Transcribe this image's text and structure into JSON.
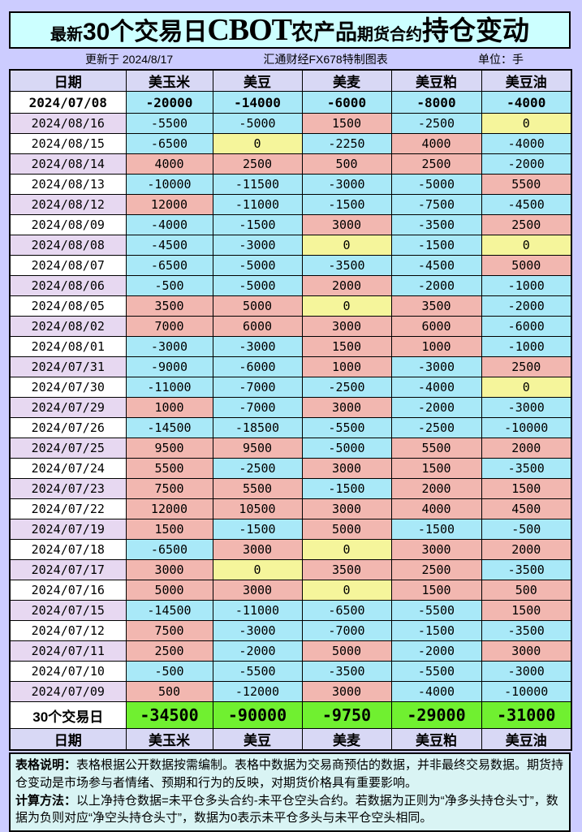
{
  "title": {
    "p1": "最新",
    "p2": "30个交易日",
    "p3": "CBOT",
    "p4": "农产品",
    "p5": "期货合约",
    "p6": "持仓变动"
  },
  "meta": {
    "updated": "更新于 2024/8/17",
    "source": "汇通财经FX678特制图表",
    "unit": "单位：手"
  },
  "chart_data": {
    "type": "table",
    "title": "最新30个交易日CBOT农产品期货合约持仓变动",
    "unit": "手",
    "columns": [
      "日期",
      "美玉米",
      "美豆",
      "美麦",
      "美豆粕",
      "美豆油"
    ],
    "rows": [
      [
        "2024/07/08",
        -20000,
        -14000,
        -6000,
        -8000,
        -4000
      ],
      [
        "2024/08/16",
        -5500,
        -5000,
        1500,
        -2500,
        0
      ],
      [
        "2024/08/15",
        -6500,
        0,
        -2250,
        4000,
        -4000
      ],
      [
        "2024/08/14",
        4000,
        2500,
        500,
        2500,
        -2000
      ],
      [
        "2024/08/13",
        -10000,
        -11500,
        -3000,
        -5000,
        5500
      ],
      [
        "2024/08/12",
        12000,
        -11000,
        -1500,
        -7500,
        -4500
      ],
      [
        "2024/08/09",
        -4000,
        -1500,
        3000,
        -3500,
        2500
      ],
      [
        "2024/08/08",
        -4500,
        -3000,
        0,
        -1500,
        0
      ],
      [
        "2024/08/07",
        -6500,
        -5000,
        -3500,
        -4500,
        5000
      ],
      [
        "2024/08/06",
        -500,
        -5000,
        2000,
        -2000,
        -1000
      ],
      [
        "2024/08/05",
        3500,
        5000,
        0,
        3500,
        -2000
      ],
      [
        "2024/08/02",
        7000,
        6000,
        3000,
        6000,
        -6000
      ],
      [
        "2024/08/01",
        -3000,
        -3000,
        1500,
        1000,
        -1000
      ],
      [
        "2024/07/31",
        -9000,
        -6000,
        1000,
        -3000,
        2500
      ],
      [
        "2024/07/30",
        -11000,
        -7000,
        -2500,
        -4000,
        0
      ],
      [
        "2024/07/29",
        1000,
        -7000,
        3000,
        -2000,
        -3000
      ],
      [
        "2024/07/26",
        -14500,
        -18500,
        -5500,
        -2500,
        -10000
      ],
      [
        "2024/07/25",
        9500,
        9500,
        -5000,
        5500,
        2000
      ],
      [
        "2024/07/24",
        5500,
        -2500,
        3000,
        1500,
        -3500
      ],
      [
        "2024/07/23",
        7500,
        5500,
        -1500,
        2000,
        1500
      ],
      [
        "2024/07/22",
        12000,
        10500,
        3000,
        4000,
        4500
      ],
      [
        "2024/07/19",
        1500,
        -1500,
        5000,
        -1500,
        -500
      ],
      [
        "2024/07/18",
        -6500,
        3000,
        0,
        3000,
        2000
      ],
      [
        "2024/07/17",
        3000,
        0,
        3500,
        2500,
        -3500
      ],
      [
        "2024/07/16",
        5000,
        3000,
        0,
        1500,
        500
      ],
      [
        "2024/07/15",
        -14500,
        -11000,
        -6500,
        -5500,
        1500
      ],
      [
        "2024/07/12",
        7500,
        -3000,
        -7000,
        -1500,
        -3500
      ],
      [
        "2024/07/11",
        2500,
        -2000,
        5000,
        -2000,
        3000
      ],
      [
        "2024/07/10",
        -500,
        -5500,
        -3500,
        -5500,
        -3000
      ],
      [
        "2024/07/09",
        500,
        -12000,
        3000,
        -4000,
        -10000
      ]
    ],
    "summary_row": [
      "30个交易日",
      -34500,
      -90000,
      -9750,
      -29000,
      -31000
    ],
    "footer_columns": [
      "日期",
      "美玉米",
      "美豆",
      "美麦",
      "美豆粕",
      "美豆油"
    ]
  },
  "notes": {
    "l1_label": "表格说明：",
    "l1_text": "表格根据公开数据按需编制。表格中数据为交易商预估的数据，并非最终交易数据。期货持仓变动是市场参与者情绪、预期和行为的反映，对期货价格具有重要影响。",
    "l2_label": "计算方法：",
    "l2_text": "以上净持仓数据=未平仓多头合约-未平仓空头合约。若数据为正则为“净多头持仓头寸”，数据为负则对应“净空头持仓头寸”，数据为0表示未平仓多头与未平仓空头相同。"
  },
  "colors": {
    "page_bg": "#ccccff",
    "title_panel_bg": "#ccffff",
    "header_bg": "#d8d8f5",
    "row_date_alt_bg": "#e7d8f1",
    "row_date_bg": "#ffffff",
    "positive_bg": "#f2b7b0",
    "negative_bg": "#a9e9f8",
    "zero_bg": "#f5f59b",
    "summary_bg": "#70f030",
    "notes_bg": "#d9f4f4",
    "border": "#000000"
  }
}
